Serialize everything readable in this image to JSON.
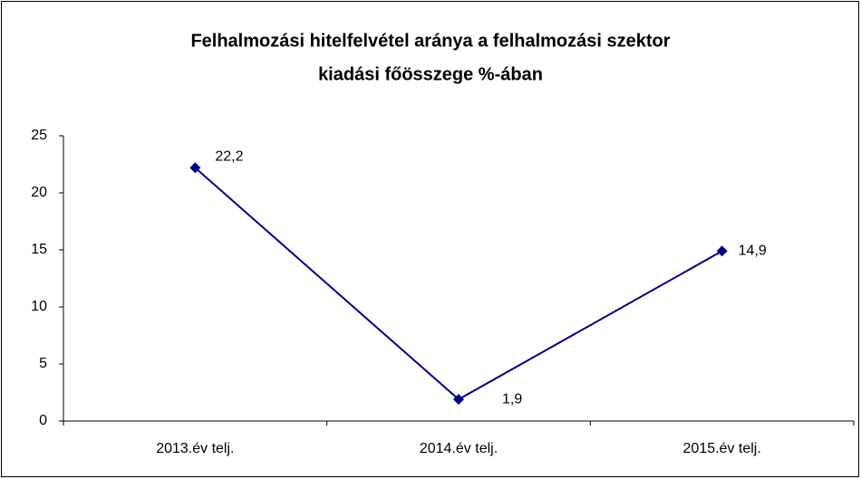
{
  "chart_data": {
    "type": "line",
    "title": [
      "Felhalmozási hitelfelvétel aránya a felhalmozási szektor",
      "kiadási főösszege %-ában"
    ],
    "categories": [
      "2013.év telj.",
      "2014.év telj.",
      "2015.év telj."
    ],
    "values": [
      22.2,
      1.9,
      14.9
    ],
    "value_labels": [
      "22,2",
      "1,9",
      "14,9"
    ],
    "color": "#000080",
    "ylim": [
      0,
      25
    ],
    "yticks": [
      0,
      5,
      10,
      15,
      20,
      25
    ],
    "grid": false
  }
}
